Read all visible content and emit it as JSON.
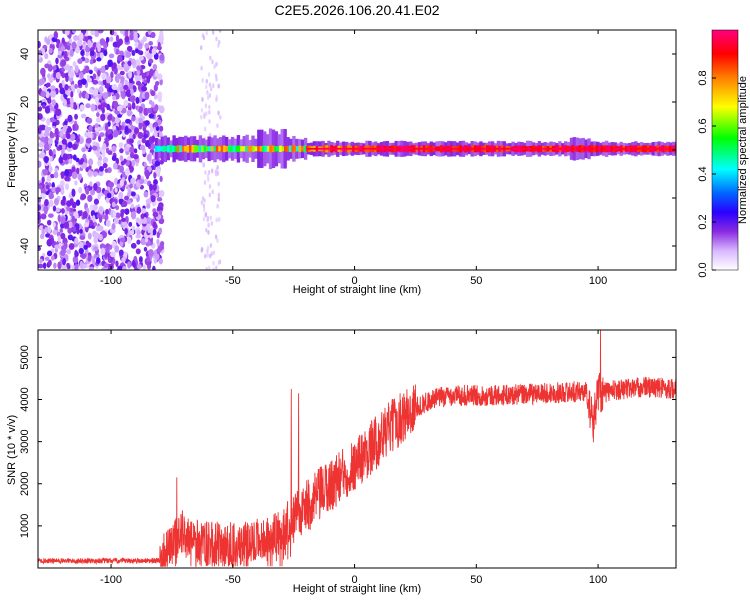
{
  "figure": {
    "title": "C2E5.2026.106.20.41.E02"
  },
  "chart_data": [
    {
      "type": "heatmap",
      "xlabel": "Height of straight line (km)",
      "ylabel": "Frequency (Hz)",
      "xlim": [
        -130,
        132
      ],
      "ylim": [
        -50,
        50
      ],
      "xticks": [
        -100,
        -50,
        0,
        50,
        100
      ],
      "yticks": [
        -40,
        -20,
        0,
        20,
        40
      ],
      "colorbar": {
        "label": "Normalized spectral amplitude",
        "range": [
          0,
          1
        ],
        "ticks": [
          0.0,
          0.2,
          0.4,
          0.6,
          0.8
        ],
        "colormap": [
          "#ffffff",
          "#c78bff",
          "#8a2be2",
          "#3300ff",
          "#0080ff",
          "#00ffff",
          "#00ff00",
          "#ffff00",
          "#ff8000",
          "#ff0000",
          "#ff0080"
        ]
      },
      "description_values": {
        "noise_region_x": [
          -130,
          -79
        ],
        "signal_start_x": -82,
        "signal_center_freq": 0.5,
        "peak_amplitude_region_x": [
          -20,
          132
        ]
      }
    },
    {
      "type": "line",
      "xlabel": "Height of straight line (km)",
      "ylabel": "SNR (10 * v/v)",
      "xlim": [
        -130,
        132
      ],
      "ylim": [
        0,
        5650
      ],
      "xticks": [
        -100,
        -50,
        0,
        50,
        100
      ],
      "yticks": [
        1000,
        2000,
        3000,
        4000,
        5000
      ],
      "series_color": "#ee3333",
      "profile": {
        "x": [
          -130,
          -90,
          -80,
          -75,
          -72,
          -65,
          -60,
          -50,
          -40,
          -30,
          -26,
          -22,
          -15,
          -10,
          -5,
          0,
          5,
          10,
          15,
          20,
          25,
          30,
          35,
          40,
          50,
          60,
          80,
          95,
          98,
          100,
          102,
          105,
          110,
          120,
          132
        ],
        "y": [
          170,
          170,
          180,
          500,
          900,
          650,
          550,
          550,
          700,
          800,
          1250,
          1300,
          1700,
          1950,
          2200,
          2450,
          2750,
          3050,
          3350,
          3600,
          3800,
          3950,
          4050,
          4100,
          4100,
          4100,
          4150,
          4200,
          3400,
          4250,
          4150,
          4200,
          4250,
          4300,
          4250
        ]
      },
      "spikes": [
        {
          "x": -73,
          "y": 2150
        },
        {
          "x": -26,
          "y": 4250
        },
        {
          "x": -23,
          "y": 4150
        },
        {
          "x": 101,
          "y": 5650
        }
      ]
    }
  ]
}
